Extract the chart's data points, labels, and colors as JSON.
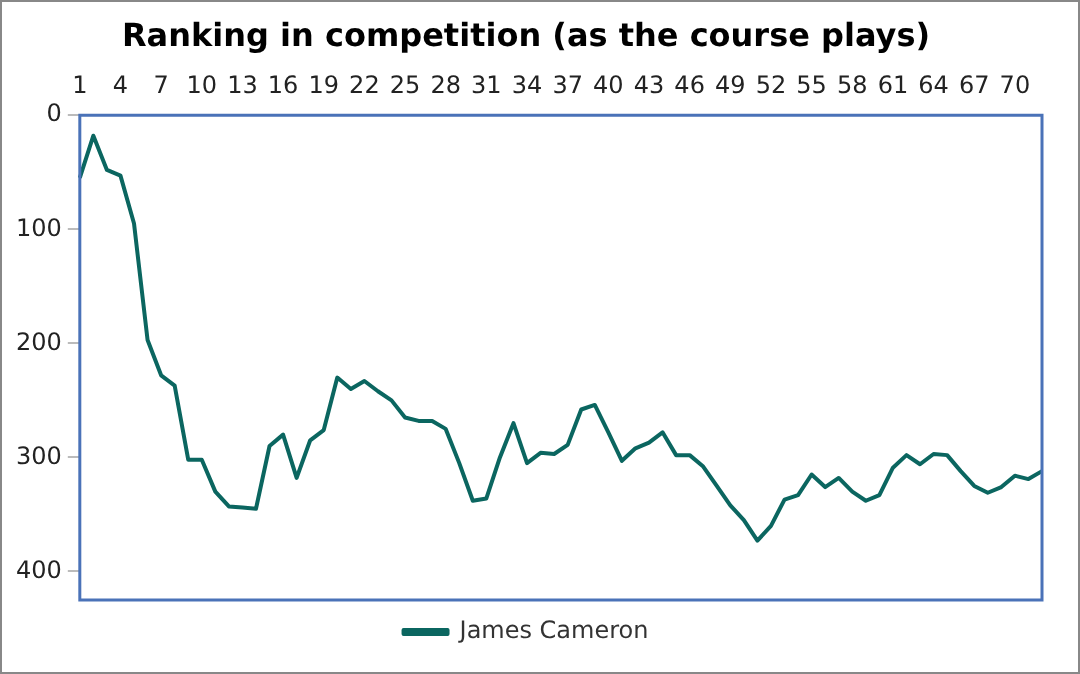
{
  "chart_data": {
    "type": "line",
    "title": "Ranking in competition (as the course plays)",
    "categories": [
      "1",
      null,
      null,
      "4",
      null,
      null,
      "7",
      null,
      null,
      "10",
      null,
      null,
      "13",
      null,
      null,
      "16",
      null,
      null,
      "19",
      null,
      null,
      "22",
      null,
      null,
      "25",
      null,
      null,
      "28",
      null,
      null,
      "31",
      null,
      null,
      "34",
      null,
      null,
      "37",
      null,
      null,
      "40",
      null,
      null,
      "43",
      null,
      null,
      "46",
      null,
      null,
      "49",
      null,
      null,
      "52",
      null,
      null,
      "55",
      null,
      null,
      "58",
      null,
      null,
      "61",
      null,
      null,
      "64",
      null,
      null,
      "67",
      null,
      null,
      "70",
      null,
      null
    ],
    "series": [
      {
        "name": "James Cameron",
        "color": "#0b6660",
        "values": [
          55,
          18,
          48,
          53,
          95,
          197,
          228,
          237,
          302,
          302,
          330,
          343,
          344,
          345,
          290,
          280,
          318,
          285,
          276,
          230,
          240,
          233,
          242,
          250,
          265,
          268,
          268,
          275,
          305,
          338,
          336,
          300,
          270,
          305,
          296,
          297,
          289,
          258,
          254,
          278,
          303,
          292,
          287,
          278,
          298,
          298,
          308,
          325,
          342,
          355,
          373,
          360,
          337,
          333,
          315,
          326,
          318,
          330,
          338,
          333,
          309,
          298,
          306,
          297,
          298,
          312,
          325,
          331,
          326,
          316,
          319,
          312
        ]
      }
    ],
    "ylim": [
      425,
      0
    ],
    "yticks": [
      0,
      100,
      200,
      300,
      400
    ],
    "grid": false,
    "legend": "bottom",
    "marker": "none",
    "line_style": "solid"
  }
}
